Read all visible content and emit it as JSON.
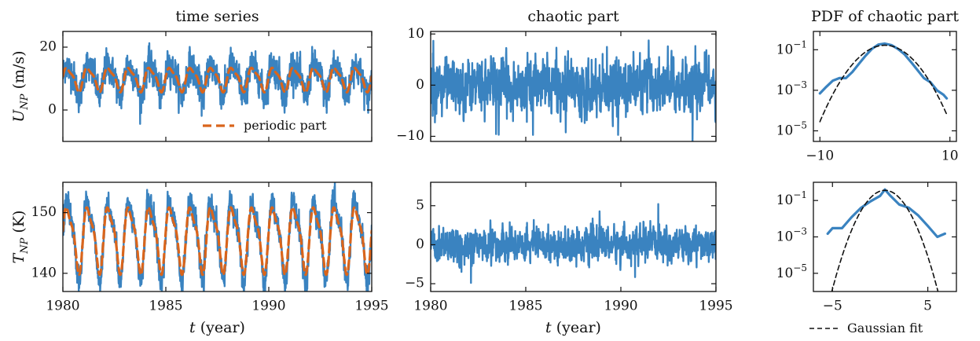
{
  "chart_data": [
    {
      "id": "u_ts",
      "type": "line",
      "title": "time series",
      "xlabel": "",
      "ylabel": "U_NP (m/s)",
      "xlim": [
        1980,
        1995
      ],
      "ylim": [
        -10,
        25
      ],
      "xticks": [
        1980,
        1985,
        1990,
        1995
      ],
      "yticks": [
        0,
        20
      ],
      "series": [
        {
          "name": "",
          "role": "raw",
          "color": "#3a83c0",
          "mean": 10,
          "amp": 4.5,
          "noise": 2.6,
          "period": 1.0
        },
        {
          "name": "periodic part",
          "role": "periodic",
          "color": "#d9651c",
          "mean": 10,
          "amp": 3.5,
          "period": 1.0
        }
      ],
      "legend": "lower-right"
    },
    {
      "id": "u_chaos",
      "type": "line",
      "title": "chaotic part",
      "xlabel": "",
      "ylabel": "",
      "xlim": [
        1980,
        1995
      ],
      "ylim": [
        -11,
        10.5
      ],
      "xticks": [
        1980,
        1985,
        1990,
        1995
      ],
      "yticks": [
        -10,
        0,
        10
      ],
      "series": [
        {
          "name": "",
          "color": "#3a83c0",
          "mean": 0,
          "noise": 2.4
        }
      ]
    },
    {
      "id": "u_pdf",
      "type": "line",
      "title": "PDF of chaotic part",
      "xlabel": "",
      "ylabel": "",
      "xlim": [
        -11,
        11
      ],
      "ylog": true,
      "ylim": [
        3e-06,
        0.8
      ],
      "xticks": [
        -10,
        10
      ],
      "yticks": [
        0.1,
        0.001,
        1e-05
      ],
      "ytick_labels": [
        "10^-1",
        "10^-3",
        "10^-5"
      ],
      "series": [
        {
          "name": "",
          "color": "#3a83c0",
          "x": [
            -10,
            -9,
            -8,
            -7,
            -6,
            -5,
            -4,
            -3,
            -2,
            -1,
            0,
            1,
            2,
            3,
            4,
            5,
            6,
            7,
            8,
            9,
            9.5
          ],
          "y": [
            0.0007,
            0.0015,
            0.003,
            0.004,
            0.004,
            0.008,
            0.02,
            0.05,
            0.11,
            0.18,
            0.2,
            0.17,
            0.11,
            0.06,
            0.025,
            0.01,
            0.004,
            0.0025,
            0.001,
            0.0006,
            0.0004
          ]
        },
        {
          "name": "",
          "color": "#111111",
          "dash": "6,4",
          "gauss": {
            "mu": 0,
            "sigma": 2.4
          },
          "x_from": -10,
          "x_to": 9.5
        }
      ]
    },
    {
      "id": "t_ts",
      "type": "line",
      "title": "",
      "xlabel": "t (year)",
      "ylabel": "T_NP (K)",
      "xlim": [
        1980,
        1995
      ],
      "ylim": [
        137,
        155
      ],
      "xticks": [
        1980,
        1985,
        1990,
        1995
      ],
      "yticks": [
        140,
        150
      ],
      "series": [
        {
          "name": "",
          "role": "raw",
          "color": "#3a83c0",
          "mean": 146,
          "amp": 6,
          "noise": 1.1,
          "period": 1.0
        },
        {
          "name": "",
          "role": "periodic",
          "color": "#d9651c",
          "mean": 146,
          "amp": 5,
          "period": 1.0
        }
      ]
    },
    {
      "id": "t_chaos",
      "type": "line",
      "title": "",
      "xlabel": "t (year)",
      "ylabel": "",
      "xlim": [
        1980,
        1995
      ],
      "ylim": [
        -6,
        8
      ],
      "xticks": [
        1980,
        1985,
        1990,
        1995
      ],
      "yticks": [
        -5,
        0,
        5
      ],
      "series": [
        {
          "name": "",
          "color": "#3a83c0",
          "mean": 0,
          "noise": 1.0
        }
      ]
    },
    {
      "id": "t_pdf",
      "type": "line",
      "title": "",
      "xlabel": "",
      "ylabel": "",
      "xlim": [
        -7,
        8
      ],
      "ylog": true,
      "ylim": [
        1e-06,
        1
      ],
      "xticks": [
        -5,
        5
      ],
      "yticks": [
        0.1,
        0.001,
        1e-05
      ],
      "ytick_labels": [
        "10^-1",
        "10^-3",
        "10^-5"
      ],
      "series": [
        {
          "name": "",
          "color": "#3a83c0",
          "x": [
            -5.5,
            -5,
            -4,
            -3,
            -2,
            -1,
            0,
            0.5,
            1,
            2,
            3,
            4,
            5,
            6,
            6.8
          ],
          "y": [
            0.0015,
            0.003,
            0.003,
            0.012,
            0.04,
            0.09,
            0.18,
            0.4,
            0.2,
            0.06,
            0.04,
            0.015,
            0.004,
            0.001,
            0.0015
          ]
        },
        {
          "name": "Gaussian fit",
          "color": "#111111",
          "dash": "6,4",
          "gauss": {
            "mu": 0.5,
            "sigma": 1.1
          },
          "x_from": -5.5,
          "x_to": 6.2
        }
      ],
      "legend": "bottom"
    }
  ]
}
